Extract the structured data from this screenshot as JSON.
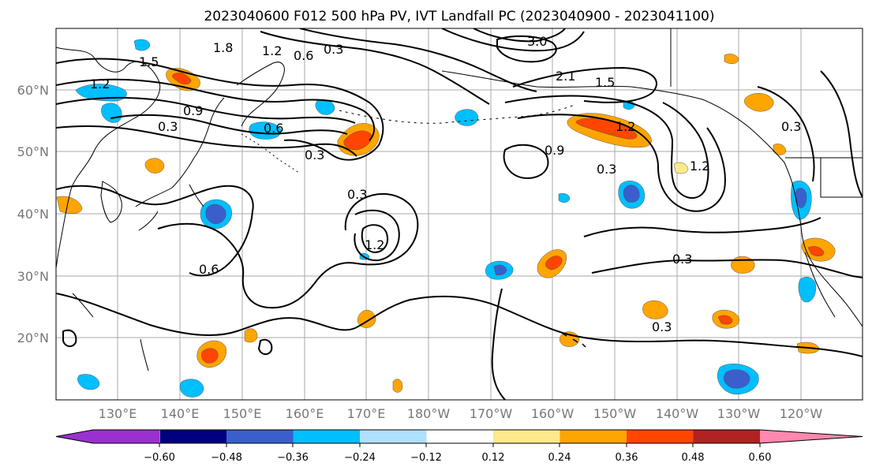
{
  "title": "2023040600 F012 500 hPa PV, IVT Landfall PC (2023040900 - 2023041100)",
  "lat_labels": [
    "60°N",
    "50°N",
    "40°N",
    "30°N",
    "20°N"
  ],
  "lon_labels": [
    "130°E",
    "140°E",
    "150°E",
    "160°E",
    "170°E",
    "180°W",
    "170°W",
    "160°W",
    "150°W",
    "140°W",
    "130°W",
    "120°W"
  ],
  "contour_labels": [
    "0.3",
    "0.6",
    "0.9",
    "1.2",
    "1.5",
    "1.8",
    "2.1",
    "3.0",
    "1.2",
    "0.3",
    "0.3",
    "0.6",
    "0.9",
    "0.3",
    "0.3",
    "1.2",
    "0.3",
    "0.3",
    "1.2",
    "0.3",
    "1.2",
    "1.5"
  ],
  "colorbar": {
    "tick_labels": [
      "−0.60",
      "−0.48",
      "−0.36",
      "−0.24",
      "−0.12",
      "0.12",
      "0.24",
      "0.36",
      "0.48",
      "0.60"
    ],
    "colors": [
      "#9b30d0",
      "#000080",
      "#3a5fcd",
      "#00bfff",
      "#b0e0ff",
      "#ffffff",
      "#ffe98a",
      "#ffa500",
      "#ff4500",
      "#b22222",
      "#ff88b0"
    ]
  },
  "colors": {
    "land_outline": "#000000",
    "contour": "#000000",
    "grid": "#aaaaaa",
    "axis_text": "#777777"
  }
}
